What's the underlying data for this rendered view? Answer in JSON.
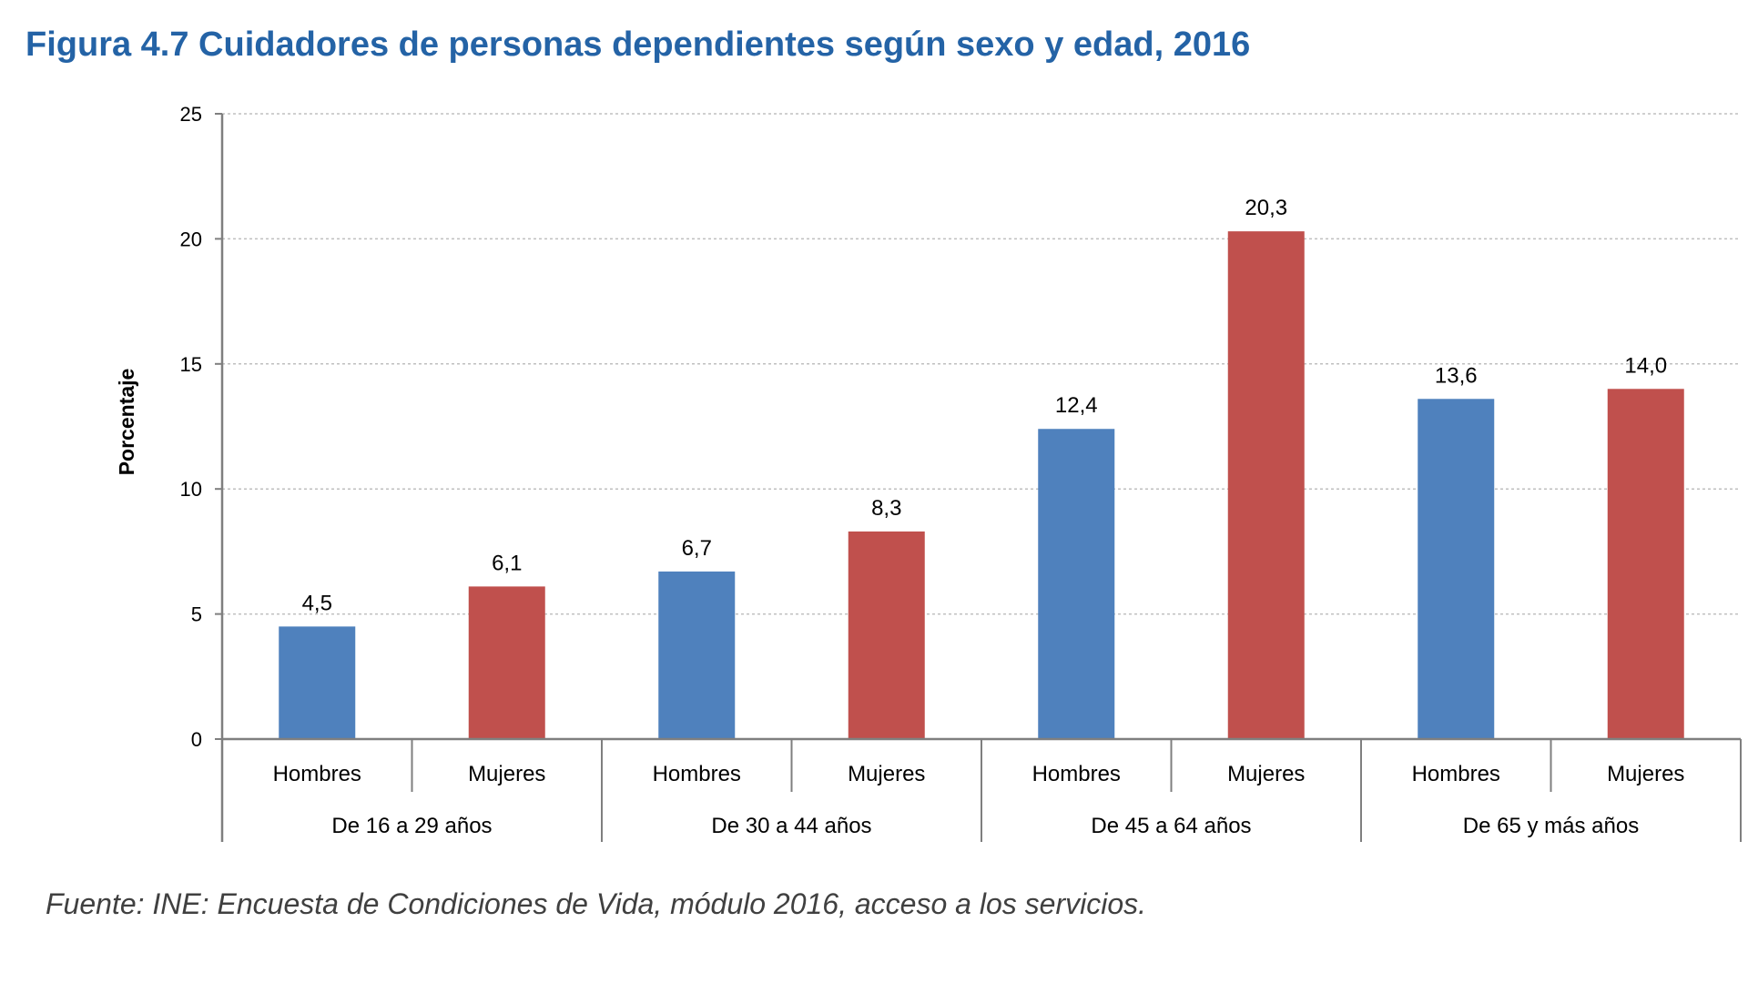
{
  "title": "Figura 4.7  Cuidadores de personas dependientes según sexo y edad, 2016",
  "source": "Fuente: INE: Encuesta de Condiciones de Vida, módulo 2016, acceso a los servicios.",
  "colors": {
    "hombres": "#4f81bd",
    "mujeres": "#c0504d",
    "title": "#2463a6",
    "axis": "#7f7f7f",
    "grid": "#bfbfbf"
  },
  "chart_data": {
    "type": "bar",
    "title": "Figura 4.7  Cuidadores de personas dependientes según sexo y edad, 2016",
    "ylabel": "Porcentaje",
    "xlabel": "",
    "ylim": [
      0,
      25
    ],
    "yticks": [
      0,
      5,
      10,
      15,
      20,
      25
    ],
    "grid": true,
    "groups": [
      "De 16 a 29 años",
      "De 30 a 44 años",
      "De 45 a 64 años",
      "De 65 y más años"
    ],
    "bars": [
      {
        "group": "De 16 a 29 años",
        "label": "Hombres",
        "value": 4.5,
        "display": "4,5",
        "series": "hombres"
      },
      {
        "group": "De 16 a 29 años",
        "label": "Mujeres",
        "value": 6.1,
        "display": "6,1",
        "series": "mujeres"
      },
      {
        "group": "De 30 a 44 años",
        "label": "Hombres",
        "value": 6.7,
        "display": "6,7",
        "series": "hombres"
      },
      {
        "group": "De 30 a 44 años",
        "label": "Mujeres",
        "value": 8.3,
        "display": "8,3",
        "series": "mujeres"
      },
      {
        "group": "De 45 a 64 años",
        "label": "Hombres",
        "value": 12.4,
        "display": "12,4",
        "series": "hombres"
      },
      {
        "group": "De 45 a 64 años",
        "label": "Mujeres",
        "value": 20.3,
        "display": "20,3",
        "series": "mujeres"
      },
      {
        "group": "De 65 y más años",
        "label": "Hombres",
        "value": 13.6,
        "display": "13,6",
        "series": "hombres"
      },
      {
        "group": "De 65 y más años",
        "label": "Mujeres",
        "value": 14.0,
        "display": "14,0",
        "series": "mujeres"
      }
    ]
  }
}
